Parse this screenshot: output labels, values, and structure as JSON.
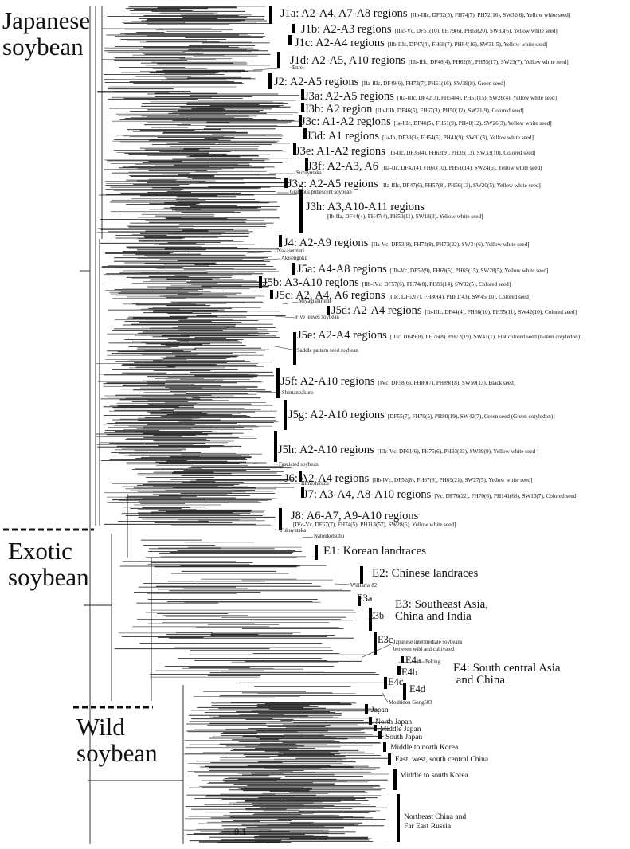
{
  "groups": {
    "japanese": "Japanese\nsoybean",
    "exotic": "Exotic\nsoybean",
    "wild": "Wild\nsoybean"
  },
  "clades": [
    {
      "id": "J1a",
      "main": "J1a: A2-A4, A7-A8 regions",
      "detail": "[IIb-IIIc, DF52(5), FH74(7), PH72(16), SW32(6), Yellow white seed]"
    },
    {
      "id": "J1b",
      "main": "J1b: A2-A3 regions",
      "detail": "[IIIc-Vc, DF51(10), FH79(6), PH63(20), SW33(6), Yellow white seed]"
    },
    {
      "id": "J1c",
      "main": "J1c: A2-A4 regions",
      "detail": "[IIb-IIIc, DF47(4), FH68(7), PH64(16), SW31(5), Yellow white seed]"
    },
    {
      "id": "J1d",
      "main": "J1d: A2-A5, A10 regions",
      "detail": "[IIb-IIIc, DF46(4), FH62(8), PH55(17), SW29(7), Yellow white seed]"
    },
    {
      "id": "J2",
      "main": "J2: A2-A5 regions",
      "detail": "[IIa-IIIc, DF49(6), FH73(7), PH61(16), SW39(8), Green seed]"
    },
    {
      "id": "J3a",
      "main": "J3a: A2-A5 regions",
      "detail": "[IIa-IIIc, DF42(3), FH54(4), PH51(15), SW28(4), Yellow white seed]"
    },
    {
      "id": "J3b",
      "main": "J3b: A2 region",
      "detail": "[IIb-IIIb, DF46(5), FH67(3), PH50(12), SW21(9), Colored seed]"
    },
    {
      "id": "J3c",
      "main": "J3c: A1-A2 regions",
      "detail": "[Ia-IIIc, DF40(5), FH61(9), PH48(12), SW26(3), Yellow white seed]"
    },
    {
      "id": "J3d",
      "main": "J3d: A1 regions",
      "detail": "[Ia-Ib, DF33(3), FH54(5), PH41(9), SW31(3), Yellow white seed]"
    },
    {
      "id": "J3e",
      "main": "J3e: A1-A2 regions",
      "detail": "[Ib-IIc, DF36(4), FH62(9), PH39(13), SW33(10), Colored seed]"
    },
    {
      "id": "J3f",
      "main": "J3f: A2-A3, A6",
      "detail": "[IIa-IIc, DF42(4), FH60(10), PH51(14), SW24(6), Yellow white seed]"
    },
    {
      "id": "J3g",
      "main": "J3g: A2-A5 regions",
      "detail": "[IIa-IIIc, DF47(6), FH57(8), PH56(13), SW20(5), Yellow white seed]"
    },
    {
      "id": "J3h",
      "main": "J3h: A3,A10-A11 regions",
      "detail": "[Ib-IIa, DF44(4), FH47(4), PH50(11), SW18(3), Yellow white seed]"
    },
    {
      "id": "J4",
      "main": "J4: A2-A9 regions",
      "detail": "[IIa-Vc, DF53(8), FH72(8), PH73(22), SW34(6), Yellow white seed]"
    },
    {
      "id": "J5a",
      "main": "J5a: A4-A8 regions",
      "detail": "[IIb-Vc, DF52(9), FH69(6), PH69(15), SW28(5), Yellow white seed]"
    },
    {
      "id": "J5b",
      "main": "J5b: A3-A10 regions",
      "detail": "[IIb-IVc, DF57(6), FH74(8), PH80(14), SW32(5), Colored seed]"
    },
    {
      "id": "J5c",
      "main": "J5c: A2, A4, A6 regions",
      "detail": "[IIIc, DF52(7), FH80(4), PH81(43), SW45(10), Colored seed]"
    },
    {
      "id": "J5d",
      "main": "J5d: A2-A4 regions",
      "detail": "[Ib-IIIc, DF44(4), FH66(10), PH55(11), SW42(10), Colored seed]"
    },
    {
      "id": "J5e",
      "main": "J5e: A2-A4 regions",
      "detail": "[IIIc, DF49(8), FH76(8), PH72(19), SW41(7), Flat colored seed (Green cotyledon)]"
    },
    {
      "id": "J5f",
      "main": "J5f: A2-A10 regions",
      "detail": "[IVc, DF58(6), FH80(7), PH89(18), SW50(13), Black seed]"
    },
    {
      "id": "J5g",
      "main": "J5g: A2-A10 regions",
      "detail": "[DF55(7), FH79(5), PH80(19), SW42(7), Green seed (Green cotyledon)]"
    },
    {
      "id": "J5h",
      "main": "J5h: A2-A10 regions",
      "detail": "[IIIc-Vc, DF61(6), FH75(6), PH93(33), SW39(9), Yellow white seed ]"
    },
    {
      "id": "J6",
      "main": "J6: A2-A4 regions",
      "detail": "[IIb-IVc, DF52(8), FH67(8), PH69(21), SW27(5), Yellow white seed]"
    },
    {
      "id": "J7",
      "main": "J7: A3-A4, A8-A10 regions",
      "detail": "[Vc, DF76(22), FH70(6), PH141(68), SW15(7), Colored seed]"
    },
    {
      "id": "J8",
      "main": "J8: A6-A7,  A9-A10 regions",
      "detail": "[IVc-Vc, DF67(7), FH74(5), PH113(57), SW28(6), Yellow white seed]"
    }
  ],
  "exotic_clades": {
    "e1": "E1: Korean landraces",
    "e2": "E2: Chinese landraces",
    "e3a": "E3a",
    "e3b": "E3b",
    "e3c": "E3c",
    "e3": "E3: Southeast Asia,\nChina and India",
    "e4a": "E4a",
    "e4b": "E4b",
    "e4c": "E4c",
    "e4d": "E4d",
    "e4": "E4: South central Asia\n and China"
  },
  "wild_labels": [
    "Japan",
    "North Japan",
    "Middle Japan",
    "South Japan",
    "Middle to north Korea",
    "East, west, south central China",
    "Middle to south Korea",
    "Northeast China and\nFar East Russia"
  ],
  "cultivars": [
    "Enrei",
    "Suzuyutaka",
    "Glabrous pubescent soybean",
    "Nakasennari",
    "Akisengoku",
    "Miyagishirome",
    "Five leaves soybean",
    "Saddle pattern seed soybean",
    "Shintanbakuro",
    "Fasciated soybean",
    "Himeshirazu",
    "Fukuyutaka",
    "Natoukotsubu",
    "Williams 82",
    "Japanese intermediate soybeans\nbetween wild and cultivated",
    "Peking",
    "Moshidou Gong503"
  ],
  "scale_bar": {
    "label": "0.1"
  }
}
